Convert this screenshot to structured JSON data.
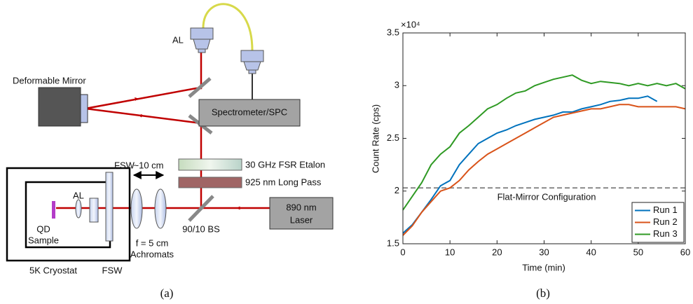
{
  "diagram": {
    "objective_label": "AL",
    "deformable_mirror": "Deformable Mirror",
    "spectrometer": "Spectrometer/SPC",
    "etalon": "30 GHz FSR Etalon",
    "long_pass": "925 nm Long Pass",
    "fsw_top": "FSW",
    "distance": "~10 cm",
    "laser": [
      "890 nm",
      "Laser"
    ],
    "cryostat_lens": "AL",
    "sample": [
      "QD",
      "Sample"
    ],
    "achromats": [
      "f = 5 cm",
      "Achromats"
    ],
    "beam_splitter": "90/10 BS",
    "cryostat": "5K Cryostat",
    "fsw_bottom": "FSW",
    "caption": "(a)"
  },
  "chart_data": {
    "type": "line",
    "caption": "(b)",
    "xlabel": "Time (min)",
    "ylabel": "Count Rate (cps)",
    "y_multiplier": "×10⁴",
    "x": [
      0,
      2,
      4,
      6,
      8,
      10,
      12,
      14,
      16,
      18,
      20,
      22,
      24,
      26,
      28,
      30,
      32,
      34,
      36,
      38,
      40,
      42,
      44,
      46,
      48,
      50,
      52,
      54,
      56,
      58,
      60
    ],
    "series": [
      {
        "name": "Run 1",
        "color": "#0072bd",
        "values": [
          1.6,
          1.68,
          1.8,
          1.92,
          2.05,
          2.1,
          2.25,
          2.35,
          2.45,
          2.5,
          2.55,
          2.58,
          2.62,
          2.65,
          2.68,
          2.7,
          2.72,
          2.75,
          2.75,
          2.78,
          2.8,
          2.82,
          2.85,
          2.86,
          2.88,
          2.88,
          2.9,
          2.85,
          null,
          null,
          null
        ]
      },
      {
        "name": "Run 2",
        "color": "#d95319",
        "values": [
          1.58,
          1.67,
          1.8,
          1.9,
          2.0,
          2.03,
          2.1,
          2.2,
          2.28,
          2.35,
          2.4,
          2.45,
          2.5,
          2.55,
          2.6,
          2.65,
          2.7,
          2.72,
          2.74,
          2.76,
          2.78,
          2.78,
          2.8,
          2.82,
          2.82,
          2.8,
          2.8,
          2.8,
          2.8,
          2.8,
          2.78
        ]
      },
      {
        "name": "Run 3",
        "color": "#2f9a24",
        "values": [
          1.82,
          1.95,
          2.08,
          2.25,
          2.35,
          2.42,
          2.55,
          2.62,
          2.7,
          2.78,
          2.82,
          2.88,
          2.93,
          2.95,
          3.0,
          3.03,
          3.06,
          3.08,
          3.1,
          3.05,
          3.02,
          3.04,
          3.03,
          3.02,
          3.0,
          3.02,
          3.0,
          3.02,
          3.0,
          3.02,
          2.97
        ]
      }
    ],
    "reference_line": {
      "value": 2.03,
      "label": "Flat-Mirror Configuration",
      "color": "#888888"
    },
    "xlim": [
      0,
      60
    ],
    "xticks": [
      0,
      10,
      20,
      30,
      40,
      50,
      60
    ],
    "ylim": [
      1.5,
      3.5
    ],
    "yticks": [
      1.5,
      2,
      2.5,
      3,
      3.5
    ],
    "legend": "lower right"
  }
}
